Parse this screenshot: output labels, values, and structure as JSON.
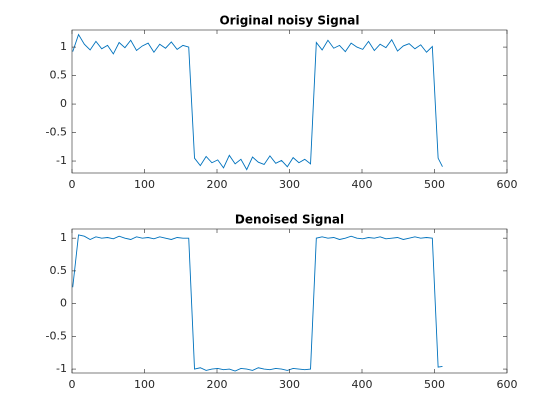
{
  "chart_data": [
    {
      "type": "line",
      "title": "Original noisy Signal",
      "color": "#0072bd",
      "x": [
        1,
        9,
        17,
        25,
        33,
        41,
        49,
        57,
        65,
        73,
        81,
        89,
        97,
        105,
        113,
        121,
        129,
        137,
        145,
        153,
        161,
        169,
        177,
        185,
        193,
        201,
        209,
        217,
        225,
        233,
        241,
        249,
        257,
        265,
        273,
        281,
        289,
        297,
        305,
        313,
        321,
        329,
        337,
        345,
        353,
        361,
        369,
        377,
        385,
        393,
        401,
        409,
        417,
        425,
        433,
        441,
        449,
        457,
        465,
        473,
        481,
        489,
        497,
        505,
        511
      ],
      "values": [
        0.92,
        1.22,
        1.05,
        0.95,
        1.1,
        0.97,
        1.03,
        0.88,
        1.08,
        0.99,
        1.12,
        0.94,
        1.02,
        1.07,
        0.91,
        1.05,
        0.98,
        1.09,
        0.96,
        1.03,
        1.0,
        -0.95,
        -1.08,
        -0.92,
        -1.03,
        -0.98,
        -1.12,
        -0.9,
        -1.05,
        -0.97,
        -1.15,
        -0.93,
        -1.02,
        -1.06,
        -0.91,
        -1.04,
        -0.99,
        -1.1,
        -0.94,
        -1.03,
        -0.97,
        -1.05,
        1.08,
        0.95,
        1.12,
        0.98,
        1.03,
        0.92,
        1.07,
        1.0,
        0.96,
        1.1,
        0.94,
        1.05,
        0.99,
        1.13,
        0.93,
        1.02,
        1.06,
        0.97,
        1.04,
        0.91,
        1.01,
        -0.95,
        -1.1
      ],
      "xlim": [
        0,
        600
      ],
      "xticks": [
        0,
        100,
        200,
        300,
        400,
        500,
        600
      ],
      "ylim": [
        -1.21,
        1.3
      ],
      "yticks": [
        -1,
        -0.5,
        0,
        0.5,
        1
      ]
    },
    {
      "type": "line",
      "title": "Denoised Signal",
      "color": "#0072bd",
      "x": [
        1,
        9,
        17,
        25,
        33,
        41,
        49,
        57,
        65,
        73,
        81,
        89,
        97,
        105,
        113,
        121,
        129,
        137,
        145,
        153,
        161,
        169,
        177,
        185,
        193,
        201,
        209,
        217,
        225,
        233,
        241,
        249,
        257,
        265,
        273,
        281,
        289,
        297,
        305,
        313,
        321,
        329,
        337,
        345,
        353,
        361,
        369,
        377,
        385,
        393,
        401,
        409,
        417,
        425,
        433,
        441,
        449,
        457,
        465,
        473,
        481,
        489,
        497,
        505,
        511
      ],
      "values": [
        0.25,
        1.05,
        1.03,
        0.98,
        1.02,
        1.0,
        1.01,
        0.99,
        1.03,
        1.0,
        0.98,
        1.02,
        1.0,
        1.01,
        0.99,
        1.02,
        1.0,
        0.98,
        1.01,
        1.0,
        1.0,
        -1.0,
        -0.98,
        -1.02,
        -1.0,
        -0.99,
        -1.01,
        -1.0,
        -1.03,
        -0.99,
        -1.0,
        -1.02,
        -0.98,
        -1.0,
        -1.01,
        -0.99,
        -1.0,
        -1.02,
        -0.99,
        -1.0,
        -1.01,
        -1.0,
        1.0,
        1.02,
        1.0,
        1.01,
        0.98,
        1.0,
        1.03,
        1.0,
        0.99,
        1.01,
        1.0,
        1.02,
        0.99,
        1.0,
        1.01,
        0.98,
        1.0,
        1.02,
        1.0,
        1.01,
        1.0,
        -0.97,
        -0.96
      ],
      "xlim": [
        0,
        600
      ],
      "xticks": [
        0,
        100,
        200,
        300,
        400,
        500,
        600
      ],
      "ylim": [
        -1.06,
        1.14
      ],
      "yticks": [
        -1,
        -0.5,
        0,
        0.5,
        1
      ]
    }
  ]
}
